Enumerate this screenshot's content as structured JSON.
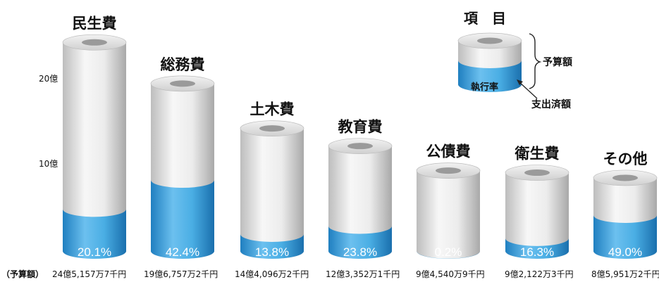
{
  "chart_data": {
    "type": "bar",
    "yticks": [
      {
        "label": "10億",
        "value": 10
      },
      {
        "label": "20億",
        "value": 20
      }
    ],
    "budget_prefix": "（予算額）",
    "categories": [
      "民生費",
      "総務費",
      "土木費",
      "教育費",
      "公債費",
      "衛生費",
      "その他"
    ],
    "budget_oku": [
      24.52,
      19.68,
      14.41,
      12.34,
      9.45,
      9.21,
      8.6
    ],
    "execution_rate_pct": [
      20.1,
      42.4,
      13.8,
      23.8,
      0.2,
      16.3,
      49.0
    ],
    "execution_rate_labels": [
      "20.1%",
      "42.4%",
      "13.8%",
      "23.8%",
      "0.2%",
      "16.3%",
      "49.0%"
    ],
    "budget_labels": [
      "24億5,157万7千円",
      "19億6,757万2千円",
      "14億4,096万2千円",
      "12億3,352万1千円",
      "9億4,540万9千円",
      "9億2,122万3千円",
      "8億5,951万2千円"
    ],
    "colors": {
      "budget": "#e4e4e4",
      "spent": "#3d9fd6"
    },
    "legend": {
      "title": "項　目",
      "budget": "予算額",
      "rate": "執行率",
      "spent": "支出済額"
    }
  }
}
